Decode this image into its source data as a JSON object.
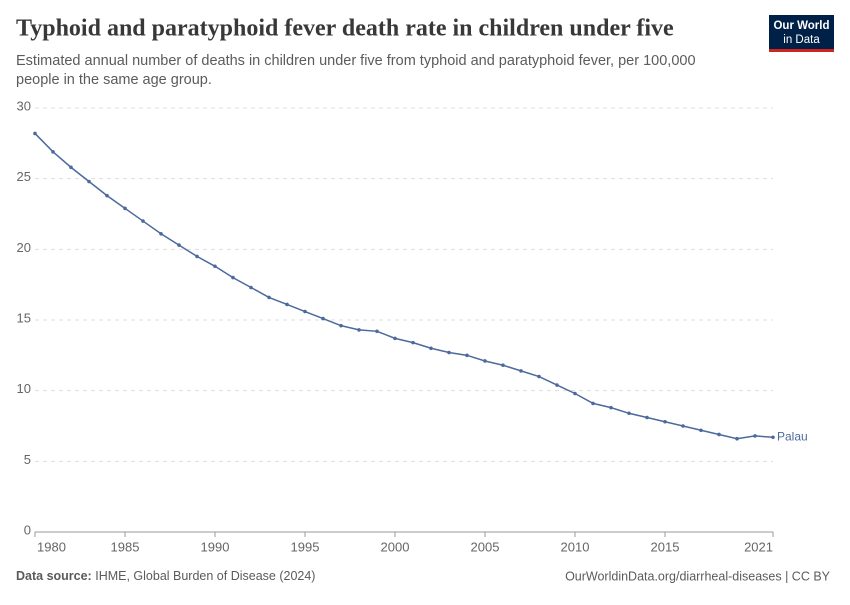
{
  "chart_data": {
    "type": "line",
    "title": "Typhoid and paratyphoid fever death rate in children under five",
    "subtitle": [
      "Estimated annual number of deaths in children under five from typhoid and paratyphoid fever, per 100,000",
      "people in the same age group."
    ],
    "logo": [
      "Our World",
      "in Data"
    ],
    "source_label": "Data source:",
    "source": "IHME, Global Burden of Disease (2024)",
    "credit": "OurWorldinData.org/diarrheal-diseases | CC BY",
    "x": [
      1980,
      1981,
      1982,
      1983,
      1984,
      1985,
      1986,
      1987,
      1988,
      1989,
      1990,
      1991,
      1992,
      1993,
      1994,
      1995,
      1996,
      1997,
      1998,
      1999,
      2000,
      2001,
      2002,
      2003,
      2004,
      2005,
      2006,
      2007,
      2008,
      2009,
      2010,
      2011,
      2012,
      2013,
      2014,
      2015,
      2016,
      2017,
      2018,
      2019,
      2020,
      2021
    ],
    "series": [
      {
        "name": "Palau",
        "color": "#4c6a9c",
        "values": [
          28.2,
          26.9,
          25.8,
          24.8,
          23.8,
          22.9,
          22.0,
          21.1,
          20.3,
          19.5,
          18.8,
          18.0,
          17.3,
          16.6,
          16.1,
          15.6,
          15.1,
          14.6,
          14.3,
          14.2,
          13.7,
          13.4,
          13.0,
          12.7,
          12.5,
          12.1,
          11.8,
          11.4,
          11.0,
          10.4,
          9.8,
          9.1,
          8.8,
          8.4,
          8.1,
          7.8,
          7.5,
          7.2,
          6.9,
          6.6,
          6.8,
          6.7
        ]
      }
    ],
    "xlim": [
      1980,
      2021
    ],
    "xticks": [
      1980,
      1985,
      1990,
      1995,
      2000,
      2005,
      2010,
      2015,
      2021
    ],
    "ylim": [
      0,
      30
    ],
    "yticks": [
      0,
      5,
      10,
      15,
      20,
      25,
      30
    ],
    "grid": true
  }
}
